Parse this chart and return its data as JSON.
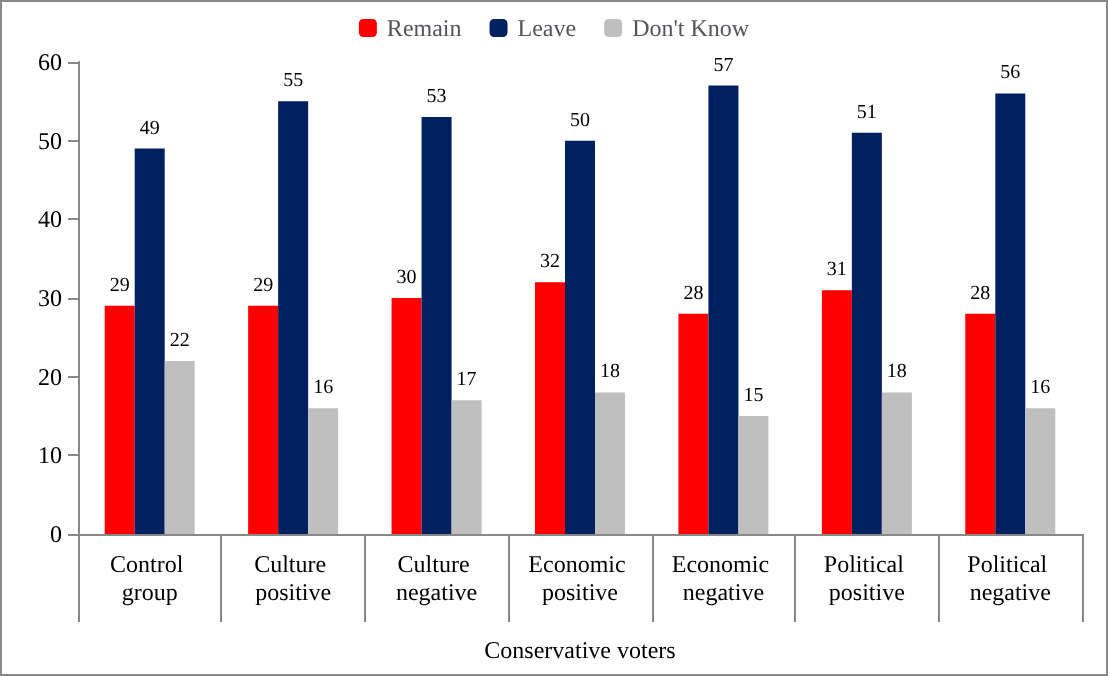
{
  "chart_data": {
    "type": "bar",
    "xlabel": "Conservative voters",
    "categories": [
      "Control group",
      "Culture positive",
      "Culture negative",
      "Economic positive",
      "Economic negative",
      "Political positive",
      "Political negative"
    ],
    "series": [
      {
        "name": "Remain",
        "color": "#ff0000",
        "values": [
          29,
          29,
          30,
          32,
          28,
          31,
          28
        ]
      },
      {
        "name": "Leave",
        "color": "#002060",
        "values": [
          49,
          55,
          53,
          50,
          57,
          51,
          56
        ]
      },
      {
        "name": "Don't Know",
        "color": "#bfbfbf",
        "values": [
          22,
          16,
          17,
          18,
          15,
          18,
          16
        ]
      }
    ],
    "ylim": [
      0,
      60
    ],
    "yticks": [
      0,
      10,
      20,
      30,
      40,
      50,
      60
    ],
    "grid": false,
    "legend": "top",
    "data_labels": true
  }
}
